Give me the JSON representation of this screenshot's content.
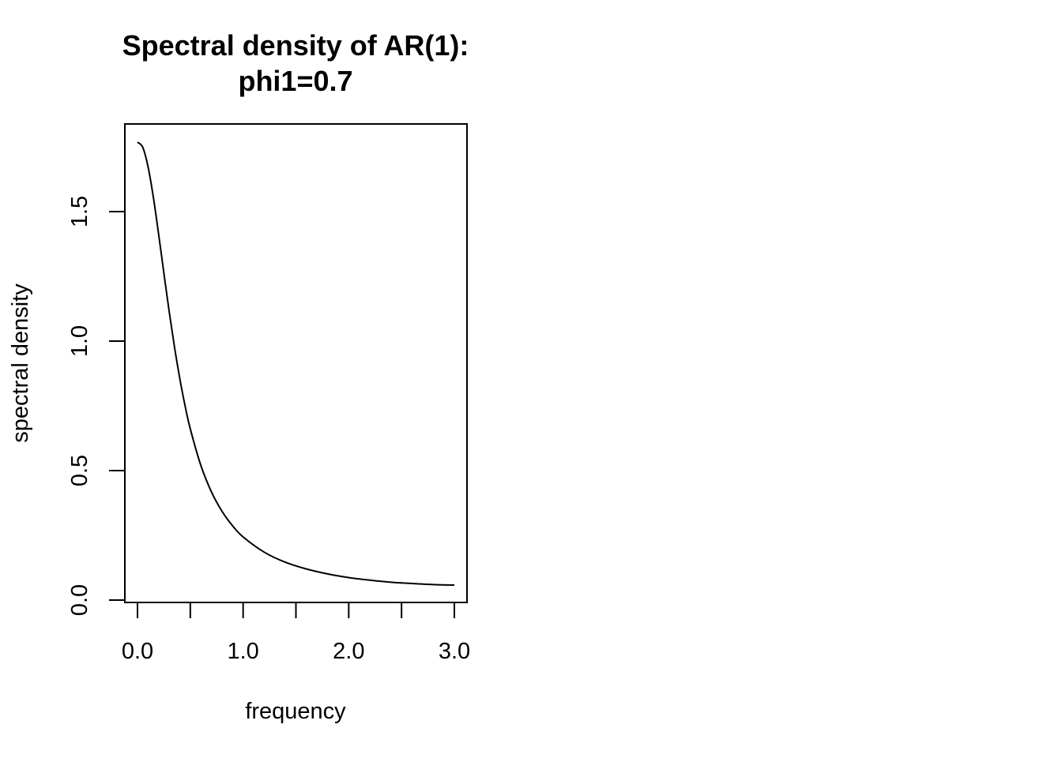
{
  "chart_data": {
    "type": "line",
    "title": [
      "Spectral density of AR(1):",
      "phi1=0.7"
    ],
    "xlabel": "frequency",
    "ylabel": "spectral density",
    "xlim": [
      0,
      3
    ],
    "ylim": [
      0,
      1.8
    ],
    "x_ticks": [
      0,
      0.5,
      1,
      1.5,
      2,
      2.5,
      3
    ],
    "x_tick_labels": [
      "0.0",
      "",
      "1.0",
      "",
      "2.0",
      "",
      "3.0"
    ],
    "y_ticks": [
      0,
      0.5,
      1,
      1.5
    ],
    "y_tick_labels": [
      "0.0",
      "0.5",
      "1.0",
      "1.5"
    ],
    "grid": false,
    "legend": "none",
    "line_color": "#000000",
    "series": [
      {
        "x": [
          0.0,
          0.05,
          0.1,
          0.15,
          0.2,
          0.25,
          0.3,
          0.35,
          0.4,
          0.45,
          0.5,
          0.6,
          0.7,
          0.8,
          0.9,
          1.0,
          1.2,
          1.4,
          1.6,
          1.8,
          2.0,
          2.2,
          2.4,
          2.6,
          2.8,
          3.0
        ],
        "values": [
          1.768,
          1.748,
          1.673,
          1.556,
          1.413,
          1.262,
          1.114,
          0.978,
          0.857,
          0.751,
          0.661,
          0.52,
          0.418,
          0.343,
          0.287,
          0.244,
          0.185,
          0.146,
          0.12,
          0.101,
          0.087,
          0.077,
          0.069,
          0.064,
          0.06,
          0.058
        ]
      }
    ]
  }
}
